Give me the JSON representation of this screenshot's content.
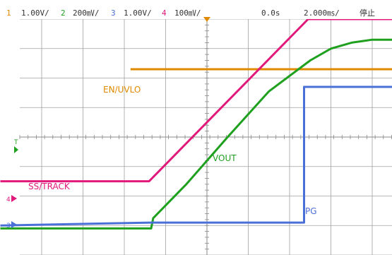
{
  "header": {
    "ch1_num": "1",
    "ch1_scale": "1.00V/",
    "ch2_num": "2",
    "ch2_scale": "200㎷/",
    "ch3_num": "3",
    "ch3_scale": "1.00V/",
    "ch4_num": "4",
    "ch4_scale": "100㎷/",
    "time_position": "0.0s",
    "timebase": "2.000㎳/",
    "run_status": "停止"
  },
  "markers": {
    "trigger": "T",
    "ch4_ref": "4",
    "ch3_ref": "3"
  },
  "colors": {
    "ch1": "#e08a00",
    "ch2": "#1fa01f",
    "ch3": "#4a70d8",
    "ch4": "#e0197a",
    "grid": "#a0a0a0",
    "header_bg": "#ffffff"
  },
  "chart_data": {
    "type": "line",
    "title": "",
    "xlabel": "",
    "ylabel": "",
    "x_unit": "ms",
    "grid": true,
    "xlim": [
      -10,
      10
    ],
    "ylim": [
      -4,
      4
    ],
    "series": [
      {
        "name": "EN/UVLO",
        "channel": 1,
        "color": "#e08a00",
        "x": [
          -3.7,
          10
        ],
        "y": [
          2.3,
          2.3
        ]
      },
      {
        "name": "SS/TRACK",
        "channel": 4,
        "color": "#e0197a",
        "x": [
          -10,
          -2.8,
          4.9,
          10
        ],
        "y": [
          -1.5,
          -1.5,
          4.0,
          4.0
        ]
      },
      {
        "name": "VOUT",
        "channel": 2,
        "color": "#1fa01f",
        "x": [
          -10,
          -2.7,
          -2.6,
          -1.0,
          1.0,
          3.0,
          5.0,
          6.0,
          7.0,
          8.0,
          10
        ],
        "y": [
          -3.1,
          -3.1,
          -2.75,
          -1.6,
          0.0,
          1.55,
          2.6,
          3.0,
          3.2,
          3.3,
          3.3
        ]
      },
      {
        "name": "PG",
        "channel": 3,
        "color": "#4a70d8",
        "x": [
          -10,
          -2.7,
          4.7,
          4.7,
          10
        ],
        "y": [
          -3.0,
          -2.9,
          -2.9,
          1.7,
          1.7
        ]
      }
    ],
    "labels": [
      {
        "text": "EN/UVLO",
        "series": "EN/UVLO"
      },
      {
        "text": "SS/TRACK",
        "series": "SS/TRACK"
      },
      {
        "text": "VOUT",
        "series": "VOUT"
      },
      {
        "text": "PG",
        "series": "PG"
      }
    ]
  }
}
